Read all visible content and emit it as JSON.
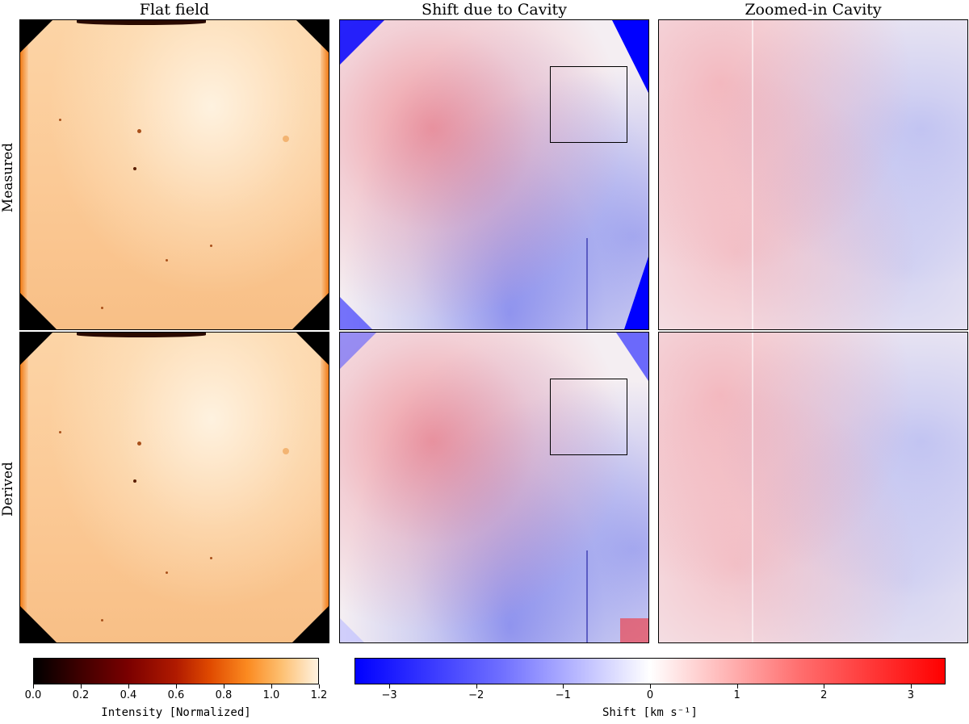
{
  "columns": [
    "Flat field",
    "Shift due to Cavity",
    "Zoomed-in Cavity"
  ],
  "rows": [
    "Measured",
    "Derived"
  ],
  "colorbar_intensity": {
    "label": "Intensity [Normalized]",
    "ticks": [
      "0.0",
      "0.2",
      "0.4",
      "0.6",
      "0.8",
      "1.0",
      "1.2"
    ],
    "range": [
      0.0,
      1.2
    ],
    "colormap": "gist_heat"
  },
  "colorbar_shift": {
    "label": "Shift [km s⁻¹]",
    "ticks": [
      "−3",
      "−2",
      "−1",
      "0",
      "1",
      "2",
      "3"
    ],
    "range": [
      -3.4,
      3.4
    ],
    "colormap": "bwr"
  }
}
